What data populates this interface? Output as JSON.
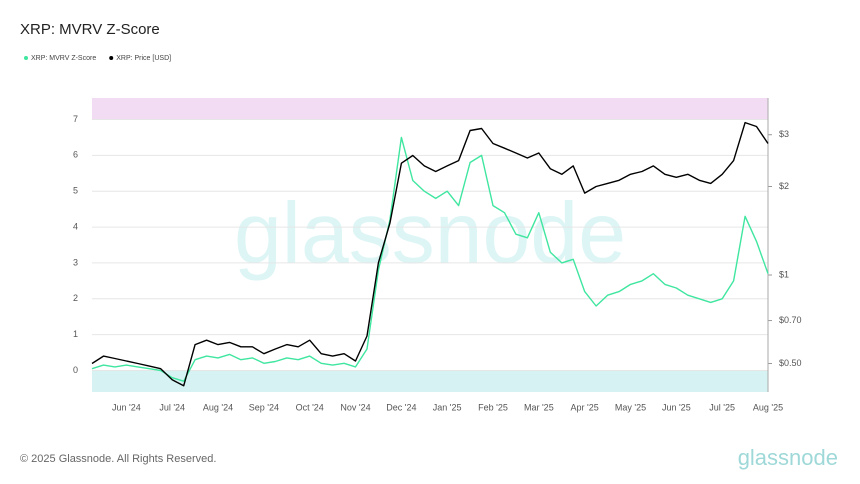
{
  "chart_data": {
    "type": "line",
    "title": "XRP: MVRV Z-Score",
    "categories": [
      null,
      null,
      null,
      "Jun '24",
      null,
      null,
      null,
      "Jul '24",
      null,
      null,
      null,
      "Aug '24",
      null,
      null,
      null,
      "Sep '24",
      null,
      null,
      null,
      "Oct '24",
      null,
      null,
      null,
      "Nov '24",
      null,
      null,
      null,
      "Dec '24",
      null,
      null,
      null,
      "Jan '25",
      null,
      null,
      null,
      "Feb '25",
      null,
      null,
      null,
      "Mar '25",
      null,
      null,
      null,
      "Apr '25",
      null,
      null,
      null,
      "May '25",
      null,
      null,
      null,
      "Jun '25",
      null,
      null,
      null,
      "Jul '25",
      null,
      null,
      null,
      "Aug '25"
    ],
    "series": [
      {
        "name": "XRP: MVRV Z-Score",
        "color": "#3fe6a0",
        "values": [
          0.05,
          0.15,
          0.1,
          0.15,
          0.1,
          0.05,
          0.0,
          -0.2,
          -0.3,
          0.3,
          0.4,
          0.35,
          0.45,
          0.3,
          0.35,
          0.2,
          0.25,
          0.35,
          0.3,
          0.4,
          0.2,
          0.15,
          0.2,
          0.1,
          0.6,
          2.8,
          4.2,
          6.5,
          5.3,
          5.0,
          4.8,
          5.0,
          4.6,
          5.8,
          6.0,
          4.6,
          4.4,
          3.8,
          3.7,
          4.4,
          3.3,
          3.0,
          3.1,
          2.2,
          1.8,
          2.1,
          2.2,
          2.4,
          2.5,
          2.7,
          2.4,
          2.3,
          2.1,
          2.0,
          1.9,
          2.0,
          2.5,
          4.3,
          3.6,
          2.7
        ]
      },
      {
        "name": "XRP: Price [USD]",
        "color": "#000000",
        "axis": "y2",
        "values": [
          0.5,
          0.53,
          0.52,
          0.51,
          0.5,
          0.49,
          0.48,
          0.44,
          0.42,
          0.58,
          0.6,
          0.58,
          0.59,
          0.57,
          0.57,
          0.54,
          0.56,
          0.58,
          0.57,
          0.6,
          0.54,
          0.53,
          0.54,
          0.51,
          0.62,
          1.1,
          1.5,
          2.4,
          2.55,
          2.35,
          2.25,
          2.35,
          2.45,
          3.1,
          3.15,
          2.8,
          2.7,
          2.6,
          2.5,
          2.6,
          2.3,
          2.2,
          2.35,
          1.9,
          2.0,
          2.05,
          2.1,
          2.2,
          2.25,
          2.35,
          2.2,
          2.15,
          2.2,
          2.1,
          2.05,
          2.2,
          2.45,
          3.3,
          3.2,
          2.8
        ]
      }
    ],
    "ylim": [
      -0.6,
      7.6
    ],
    "yticks": [
      0,
      1,
      2,
      3,
      4,
      5,
      6,
      7
    ],
    "y2lim": [
      0.4,
      4
    ],
    "y2scale": "log",
    "y2ticks": [
      {
        "value": 0.5,
        "label": "$0.50"
      },
      {
        "value": 0.7,
        "label": "$0.70"
      },
      {
        "value": 1,
        "label": "$1"
      },
      {
        "value": 2,
        "label": "$2"
      },
      {
        "value": 3,
        "label": "$3"
      }
    ],
    "grid": true,
    "upper_band_from": 7,
    "lower_band_to": 0,
    "watermark": "glassnode",
    "footer": "© 2025 Glassnode. All Rights Reserved.",
    "logo": "glassnode"
  }
}
